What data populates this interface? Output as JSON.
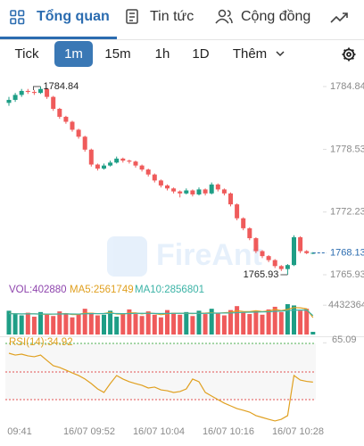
{
  "tabs": [
    "Tổng quan",
    "Tin tức",
    "Cộng đồng"
  ],
  "intervals": [
    "Tick",
    "1m",
    "15m",
    "1h",
    "1D",
    "Thêm"
  ],
  "watermark": "FireAnt",
  "chart_data": {
    "type": "candlestick",
    "candles": [
      [
        1783.2,
        1783.8,
        1782.9,
        1783.5
      ],
      [
        1783.5,
        1784.2,
        1783.3,
        1784.0
      ],
      [
        1784.0,
        1784.6,
        1783.8,
        1784.4
      ],
      [
        1784.4,
        1784.6,
        1784.1,
        1784.3
      ],
      [
        1784.3,
        1784.5,
        1784.0,
        1784.2
      ],
      [
        1784.2,
        1784.84,
        1784.1,
        1784.6
      ],
      [
        1784.6,
        1784.7,
        1783.6,
        1783.8
      ],
      [
        1783.8,
        1783.9,
        1782.4,
        1782.6
      ],
      [
        1782.6,
        1782.7,
        1781.6,
        1781.8
      ],
      [
        1781.8,
        1781.9,
        1781.1,
        1781.3
      ],
      [
        1781.3,
        1781.4,
        1780.3,
        1780.5
      ],
      [
        1780.5,
        1780.6,
        1779.6,
        1779.8
      ],
      [
        1779.8,
        1779.9,
        1778.3,
        1778.5
      ],
      [
        1778.5,
        1778.6,
        1776.8,
        1777.0
      ],
      [
        1777.0,
        1777.1,
        1776.4,
        1776.6
      ],
      [
        1776.6,
        1777.1,
        1776.5,
        1776.9
      ],
      [
        1776.9,
        1777.4,
        1776.8,
        1777.2
      ],
      [
        1777.2,
        1777.8,
        1777.1,
        1777.6
      ],
      [
        1777.6,
        1777.7,
        1777.2,
        1777.4
      ],
      [
        1777.4,
        1777.5,
        1777.1,
        1777.3
      ],
      [
        1777.3,
        1777.4,
        1776.7,
        1776.9
      ],
      [
        1776.9,
        1777.0,
        1776.3,
        1776.5
      ],
      [
        1776.5,
        1776.6,
        1775.8,
        1776.0
      ],
      [
        1776.0,
        1776.1,
        1775.2,
        1775.4
      ],
      [
        1775.4,
        1775.5,
        1774.7,
        1774.9
      ],
      [
        1774.9,
        1775.0,
        1774.4,
        1774.6
      ],
      [
        1774.6,
        1774.7,
        1774.1,
        1774.3
      ],
      [
        1774.3,
        1774.4,
        1773.7,
        1774.1
      ],
      [
        1774.1,
        1774.6,
        1774.0,
        1774.4
      ],
      [
        1774.4,
        1774.5,
        1773.8,
        1774.0
      ],
      [
        1774.0,
        1774.7,
        1773.9,
        1774.5
      ],
      [
        1774.5,
        1774.6,
        1773.9,
        1774.1
      ],
      [
        1774.1,
        1775.2,
        1774.0,
        1775.0
      ],
      [
        1775.0,
        1775.1,
        1774.3,
        1774.5
      ],
      [
        1774.5,
        1774.6,
        1773.9,
        1774.1
      ],
      [
        1774.1,
        1774.2,
        1772.8,
        1773.0
      ],
      [
        1773.0,
        1773.1,
        1771.4,
        1771.6
      ],
      [
        1771.6,
        1771.7,
        1770.4,
        1770.6
      ],
      [
        1770.6,
        1770.7,
        1769.4,
        1769.6
      ],
      [
        1769.6,
        1769.7,
        1768.1,
        1768.3
      ],
      [
        1768.3,
        1768.4,
        1767.6,
        1767.8
      ],
      [
        1767.8,
        1767.9,
        1767.2,
        1767.4
      ],
      [
        1767.4,
        1767.5,
        1766.6,
        1766.8
      ],
      [
        1766.8,
        1766.9,
        1766.3,
        1766.5
      ],
      [
        1766.5,
        1767.0,
        1765.93,
        1766.9
      ],
      [
        1766.9,
        1769.9,
        1766.8,
        1769.7
      ],
      [
        1769.7,
        1769.8,
        1768.1,
        1768.3
      ],
      [
        1768.3,
        1768.4,
        1768.0,
        1768.1
      ],
      [
        1768.1,
        1768.2,
        1768.0,
        1768.13
      ]
    ],
    "ylim": [
      1765.75,
      1785.47
    ],
    "yticks": [
      1784.84,
      1778.53,
      1772.23,
      1765.93
    ],
    "max_label": "1784.84",
    "min_label": "1765.93",
    "last_price": 1768.13,
    "up_color": "#1e9e86",
    "down_color": "#ef5b5b",
    "xtick_labels": [
      "09:41",
      "16/07 09:52",
      "16/07 10:04",
      "16/07 10:16",
      "16/07 10:28"
    ],
    "volume": {
      "vol_label": "VOL:402880",
      "ma5_label": "MA5:2561749",
      "ma10_label": "MA10:2856801",
      "ylim": [
        0,
        5000000
      ],
      "yticks": [
        4432364
      ],
      "values": [
        3600000,
        3100000,
        2900000,
        3300000,
        2700000,
        3400000,
        3000000,
        2800000,
        3500000,
        3200000,
        2600000,
        3100000,
        3900000,
        3300000,
        2900000,
        3000000,
        3600000,
        2700000,
        3200000,
        3800000,
        3100000,
        2800000,
        3500000,
        3000000,
        2600000,
        3700000,
        3300000,
        3000000,
        3400000,
        2800000,
        3600000,
        3100000,
        3900000,
        3200000,
        2900000,
        3700000,
        4300000,
        3300000,
        3100000,
        3600000,
        3000000,
        3800000,
        4200000,
        3400000,
        4600000,
        4400000,
        3600000,
        3900000,
        402880
      ],
      "ma5": [
        3200000,
        3150000,
        3100000,
        3150000,
        3120000,
        3080000,
        3060000,
        3080000,
        3100000,
        3180000,
        3020000,
        3040000,
        3240000,
        3220000,
        3160000,
        3180000,
        3340000,
        3100000,
        3080000,
        3260000,
        3280000,
        3120000,
        3260000,
        3180000,
        3000000,
        3140000,
        3220000,
        3220000,
        3200000,
        3160000,
        3220000,
        3240000,
        3300000,
        3220000,
        3300000,
        3360000,
        3600000,
        3480000,
        3460000,
        3600000,
        3460000,
        3560000,
        3800000,
        3620000,
        3800000,
        4080000,
        4040000,
        3900000,
        2561749
      ],
      "ma10": [
        3150000,
        3140000,
        3130000,
        3130000,
        3120000,
        3110000,
        3100000,
        3100000,
        3110000,
        3120000,
        3110000,
        3100000,
        3140000,
        3160000,
        3170000,
        3180000,
        3190000,
        3180000,
        3160000,
        3170000,
        3200000,
        3210000,
        3200000,
        3190000,
        3180000,
        3190000,
        3200000,
        3210000,
        3220000,
        3210000,
        3190000,
        3200000,
        3230000,
        3240000,
        3250000,
        3260000,
        3300000,
        3350000,
        3380000,
        3400000,
        3420000,
        3450000,
        3500000,
        3550000,
        3620000,
        3680000,
        3700000,
        3720000,
        2856801
      ]
    },
    "rsi": {
      "label": "RSI(14):34.92",
      "ylim": [
        3,
        66
      ],
      "yticks": [
        65.09
      ],
      "values": [
        57.1,
        55.7,
        56.4,
        55.1,
        54.4,
        55.7,
        51.6,
        47.5,
        46.2,
        44.1,
        42.0,
        40.0,
        37.3,
        33.8,
        29.7,
        27.0,
        33.8,
        40.0,
        37.3,
        35.2,
        33.8,
        32.5,
        30.4,
        31.1,
        29.0,
        28.3,
        27.0,
        27.7,
        29.7,
        37.3,
        35.2,
        27.0,
        24.2,
        21.5,
        18.8,
        16.7,
        14.6,
        13.3,
        11.9,
        9.2,
        7.8,
        6.4,
        5.1,
        6.4,
        9.2,
        40.0,
        36.5,
        35.5,
        34.92
      ]
    }
  }
}
